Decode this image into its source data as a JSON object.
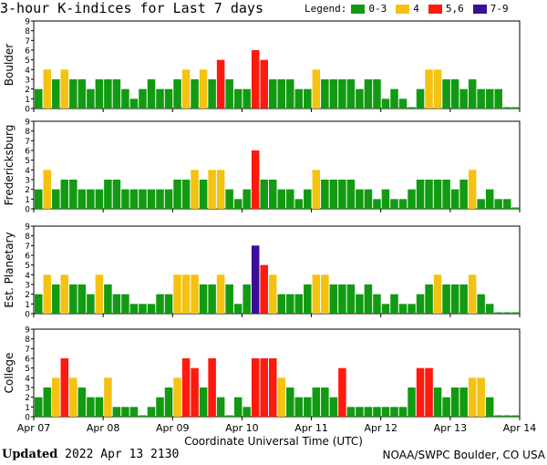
{
  "header": {
    "title": "3-hour K-indices for Last 7 days"
  },
  "legend": {
    "label": "Legend:",
    "items": [
      {
        "label": "0-3",
        "color": "#129a12"
      },
      {
        "label": "4",
        "color": "#f4c211"
      },
      {
        "label": "5,6",
        "color": "#ff1a0d"
      },
      {
        "label": "7-9",
        "color": "#3c0f99"
      }
    ]
  },
  "chart_data": {
    "type": "bar",
    "title": "3-hour K-indices for Last 7 days",
    "xlabel": "Coordinate Universal Time (UTC)",
    "ylim": [
      0,
      9
    ],
    "yticks": [
      "0",
      "1",
      "2",
      "3",
      "4",
      "5",
      "6",
      "7",
      "8",
      "9"
    ],
    "x_tick_labels": [
      "Apr 07",
      "Apr 08",
      "Apr 09",
      "Apr 10",
      "Apr 11",
      "Apr 12",
      "Apr 13",
      "Apr 14"
    ],
    "color_scale": {
      "0-3": "#129a12",
      "4": "#f4c211",
      "5,6": "#ff1a0d",
      "7-9": "#3c0f99"
    },
    "series": [
      {
        "name": "Boulder",
        "values": [
          2,
          4,
          3,
          4,
          3,
          3,
          2,
          3,
          3,
          3,
          2,
          1,
          2,
          3,
          2,
          2,
          3,
          4,
          3,
          4,
          3,
          5,
          3,
          2,
          2,
          6,
          5,
          3,
          3,
          3,
          2,
          2,
          4,
          3,
          3,
          3,
          3,
          2,
          3,
          3,
          1,
          2,
          1,
          0,
          2,
          4,
          4,
          3,
          3,
          2,
          3,
          2,
          2,
          2,
          0,
          0
        ]
      },
      {
        "name": "Fredericksburg",
        "values": [
          2,
          4,
          2,
          3,
          3,
          2,
          2,
          2,
          3,
          3,
          2,
          2,
          2,
          2,
          2,
          2,
          3,
          3,
          4,
          3,
          4,
          4,
          2,
          1,
          2,
          6,
          3,
          3,
          2,
          2,
          1,
          2,
          4,
          3,
          3,
          3,
          3,
          2,
          2,
          1,
          2,
          1,
          1,
          2,
          3,
          3,
          3,
          3,
          2,
          3,
          4,
          1,
          2,
          1,
          1,
          0
        ]
      },
      {
        "name": "Est. Planetary",
        "values": [
          2,
          4,
          3,
          4,
          3,
          3,
          2,
          4,
          3,
          2,
          2,
          1,
          1,
          1,
          2,
          2,
          4,
          4,
          4,
          3,
          3,
          4,
          3,
          1,
          3,
          7,
          5,
          4,
          2,
          2,
          2,
          3,
          4,
          4,
          3,
          3,
          3,
          2,
          3,
          2,
          1,
          2,
          1,
          1,
          2,
          3,
          4,
          3,
          3,
          3,
          4,
          2,
          1,
          0,
          0,
          0
        ]
      },
      {
        "name": "College",
        "values": [
          2,
          3,
          4,
          6,
          4,
          3,
          2,
          2,
          4,
          1,
          1,
          1,
          0,
          1,
          2,
          3,
          4,
          6,
          5,
          3,
          6,
          2,
          0,
          2,
          1,
          6,
          6,
          6,
          4,
          3,
          2,
          2,
          3,
          3,
          2,
          5,
          1,
          1,
          1,
          1,
          1,
          1,
          1,
          3,
          5,
          5,
          3,
          2,
          3,
          3,
          4,
          4,
          2,
          0,
          0,
          0
        ]
      }
    ]
  },
  "footer": {
    "updated_label": "Updated",
    "updated_value": "2022 Apr 13 2130",
    "source": "NOAA/SWPC Boulder, CO USA"
  }
}
